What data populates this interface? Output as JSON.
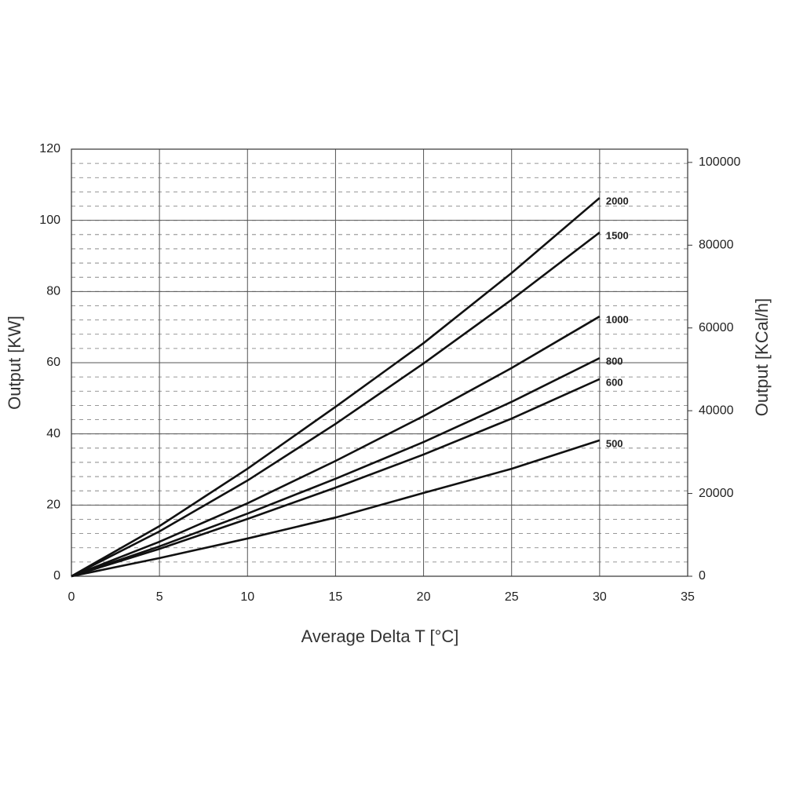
{
  "chart_data": {
    "type": "line",
    "x_label": "Average Delta T [°C]",
    "y_label": "Output [KW]",
    "y2_label": "Output [KCal/h]",
    "x": [
      0,
      5,
      10,
      15,
      20,
      25,
      30
    ],
    "series": [
      {
        "name": "2000",
        "color": "#111111",
        "values": [
          0,
          14.1,
          30.2,
          47.6,
          65.5,
          85.2,
          106.3
        ]
      },
      {
        "name": "1500",
        "color": "#111111",
        "values": [
          0,
          12.6,
          26.9,
          42.8,
          59.8,
          77.7,
          96.6
        ]
      },
      {
        "name": "1000",
        "color": "#111111",
        "values": [
          0,
          9.7,
          20.5,
          32.4,
          45,
          58.5,
          73
        ]
      },
      {
        "name": "800",
        "color": "#111111",
        "values": [
          0,
          8.4,
          17.6,
          27.4,
          37.7,
          49,
          61.3
        ]
      },
      {
        "name": "600",
        "color": "#111111",
        "values": [
          0,
          7.7,
          16.1,
          24.9,
          34.2,
          44.3,
          55.4
        ]
      },
      {
        "name": "500",
        "color": "#111111",
        "values": [
          0,
          5.1,
          10.6,
          16.5,
          23.4,
          30.2,
          38.2
        ]
      }
    ],
    "xlim": [
      0,
      35
    ],
    "xticks": [
      0,
      5,
      10,
      15,
      20,
      25,
      30,
      35
    ],
    "ylim": [
      0,
      120
    ],
    "yticks": [
      0,
      20,
      40,
      60,
      80,
      100,
      120
    ],
    "y2lim": [
      0,
      103200
    ],
    "y2ticks": [
      0,
      20000,
      40000,
      60000,
      80000,
      100000
    ],
    "grid": true,
    "yminor": 4
  }
}
